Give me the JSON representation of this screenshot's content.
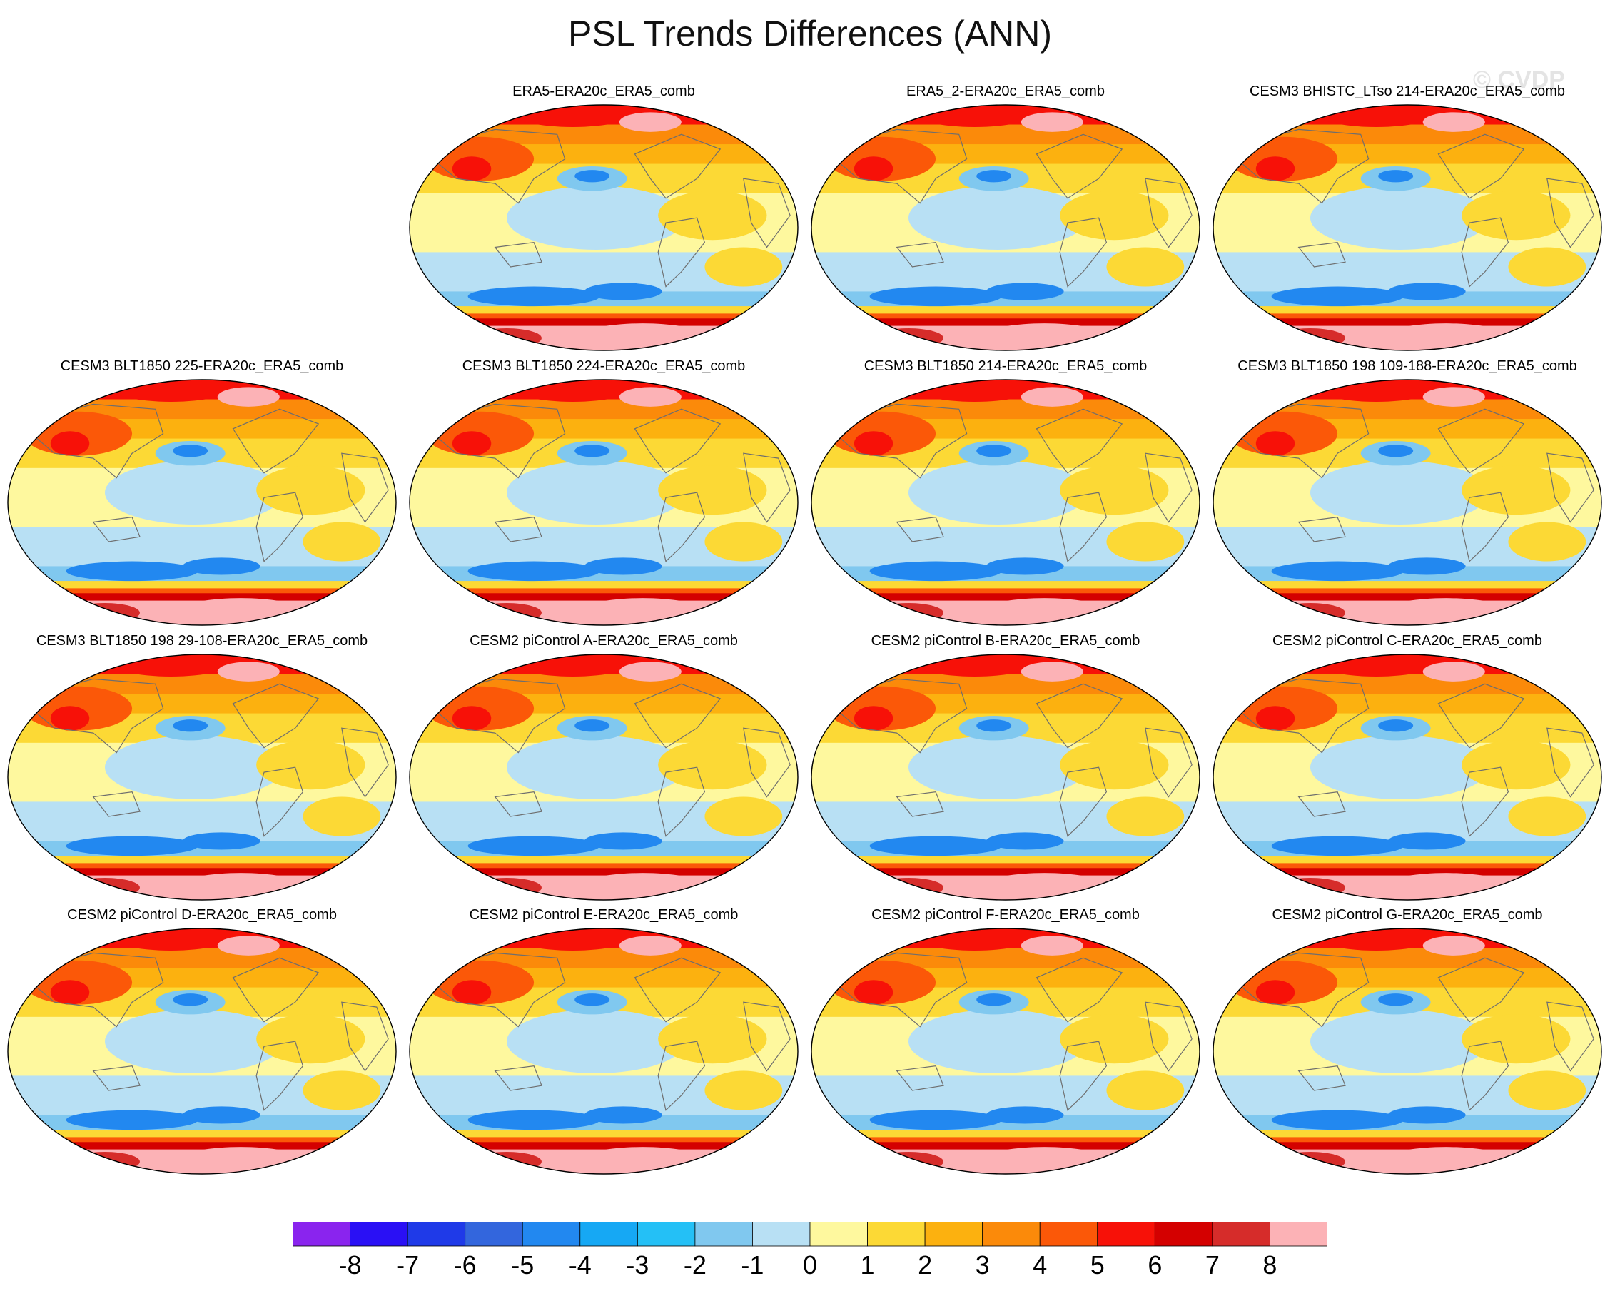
{
  "figure": {
    "title": "PSL Trends Differences (ANN)",
    "watermark": "© CVDP"
  },
  "panels": [
    {
      "title": "ERA5-ERA20c_ERA5_comb"
    },
    {
      "title": "ERA5_2-ERA20c_ERA5_comb"
    },
    {
      "title": "CESM3 BHISTC_LTso 214-ERA20c_ERA5_comb"
    },
    {
      "title": "CESM3 BLT1850 225-ERA20c_ERA5_comb"
    },
    {
      "title": "CESM3 BLT1850 224-ERA20c_ERA5_comb"
    },
    {
      "title": "CESM3 BLT1850 214-ERA20c_ERA5_comb"
    },
    {
      "title": "CESM3 BLT1850 198 109-188-ERA20c_ERA5_comb"
    },
    {
      "title": "CESM3 BLT1850 198 29-108-ERA20c_ERA5_comb"
    },
    {
      "title": "CESM2 piControl A-ERA20c_ERA5_comb"
    },
    {
      "title": "CESM2 piControl B-ERA20c_ERA5_comb"
    },
    {
      "title": "CESM2 piControl C-ERA20c_ERA5_comb"
    },
    {
      "title": "CESM2 piControl D-ERA20c_ERA5_comb"
    },
    {
      "title": "CESM2 piControl E-ERA20c_ERA5_comb"
    },
    {
      "title": "CESM2 piControl F-ERA20c_ERA5_comb"
    },
    {
      "title": "CESM2 piControl G-ERA20c_ERA5_comb"
    }
  ],
  "colorbar": {
    "labels": [
      "-8",
      "-7",
      "-6",
      "-5",
      "-4",
      "-3",
      "-2",
      "-1",
      "0",
      "1",
      "2",
      "3",
      "4",
      "5",
      "6",
      "7",
      "8"
    ],
    "colors": [
      "#8a24ee",
      "#2a10f5",
      "#1f3ae8",
      "#3366dd",
      "#2288f0",
      "#16a8f4",
      "#24c0f6",
      "#80c8ef",
      "#b8e0f4",
      "#fef89e",
      "#fcd935",
      "#fcb10f",
      "#fb8a0a",
      "#fb5808",
      "#f71108",
      "#d40000",
      "#d62c2a",
      "#fcb2b6"
    ]
  }
}
